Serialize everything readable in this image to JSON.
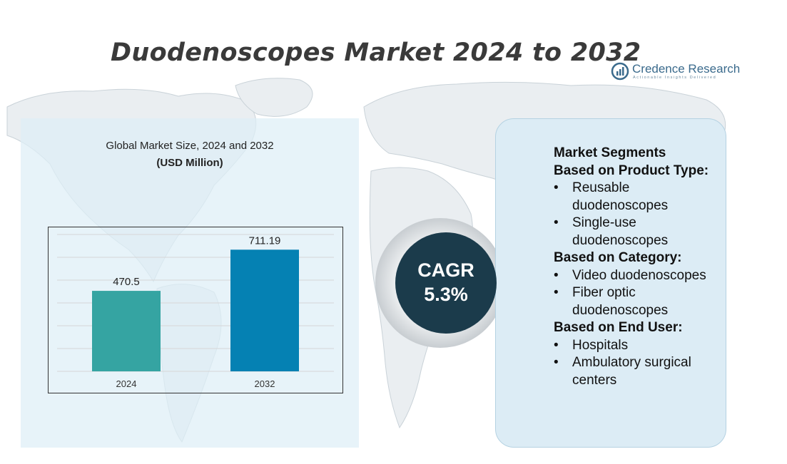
{
  "title": "Duodenoscopes Market 2024 to 2032",
  "logo": {
    "name": "Credence Research",
    "tagline": "Actionable Insights Delivered"
  },
  "chart_panel": {
    "subtitle": "Global Market Size, 2024 and 2032",
    "unit": "(USD Million)"
  },
  "chart_data": {
    "type": "bar",
    "categories": [
      "2024",
      "2032"
    ],
    "values": [
      470.5,
      711.19
    ],
    "value_labels": [
      "470.5",
      "711.19"
    ],
    "colors": [
      "#35a4a2",
      "#0581b3"
    ],
    "ylim": [
      0,
      800
    ],
    "grid": true
  },
  "cagr": {
    "label": "CAGR",
    "value": "5.3%"
  },
  "segments": {
    "title": "Market Segments",
    "groups": [
      {
        "heading": "Based on Product Type:",
        "items": [
          "Reusable duodenoscopes",
          "Single-use duodenoscopes"
        ]
      },
      {
        "heading": "Based on Category:",
        "items": [
          "Video duodenoscopes",
          "Fiber optic duodenoscopes"
        ]
      },
      {
        "heading": "Based on End User:",
        "items": [
          "Hospitals",
          "Ambulatory surgical centers"
        ]
      }
    ]
  },
  "colors": {
    "title": "#3a3a3a",
    "panel_bg": "#dfeef6",
    "cagr_circle": "#1b3b4b",
    "segments_bg": "#dcecf5"
  }
}
